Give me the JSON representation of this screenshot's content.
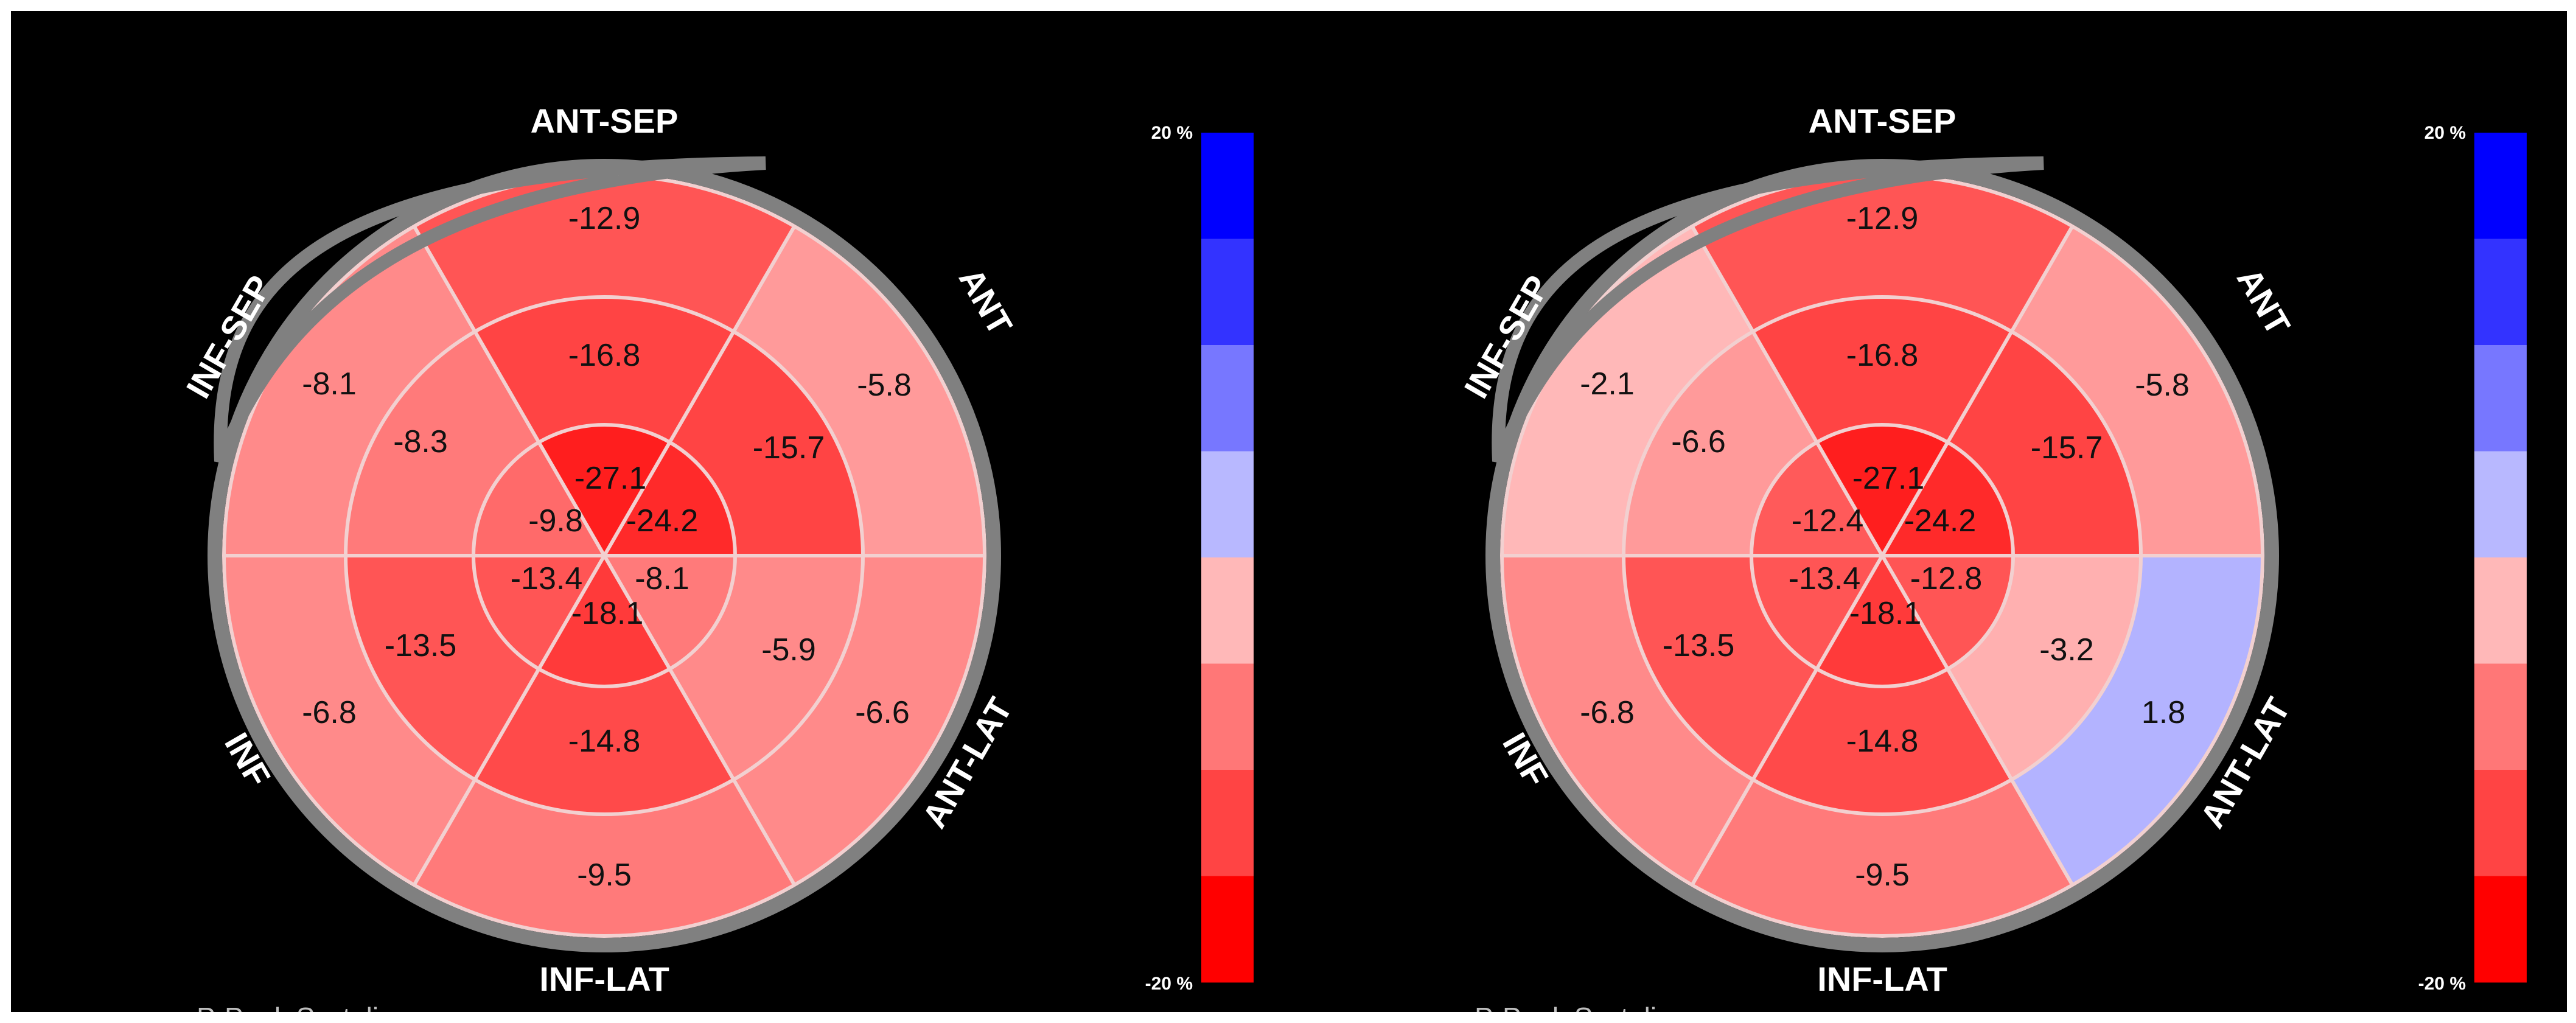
{
  "scale": {
    "max_label": "20 %",
    "min_label": "-20 %",
    "bands": [
      "#0000ff",
      "#3333ff",
      "#7777ff",
      "#b8b8ff",
      "#ffb8b8",
      "#ff7777",
      "#ff4444",
      "#ff0000"
    ]
  },
  "caption": "P-Peak Systolic",
  "maps": [
    {
      "regions": {
        "top": "ANT-SEP",
        "upper_right": "ANT",
        "lower_right": "ANT-LAT",
        "bottom": "INF-LAT",
        "lower_left": "INF",
        "upper_left": "INF-SEP"
      },
      "basal": [
        "-12.9",
        "-5.8",
        "-6.6",
        "-9.5",
        "-6.8",
        "-8.1"
      ],
      "mid": [
        "-16.8",
        "-15.7",
        "-5.9",
        "-14.8",
        "-13.5",
        "-8.3"
      ],
      "apical": [
        "-27.1",
        "-24.2",
        "-8.1",
        "-18.1",
        "-13.4",
        "-9.8"
      ],
      "basal_colors": [
        "#ff5555",
        "#ff9a9a",
        "#ff8a8a",
        "#ff7a7a",
        "#ff8a8a",
        "#ff8a8a"
      ],
      "mid_colors": [
        "#ff4444",
        "#ff4444",
        "#ff8a8a",
        "#ff4a4a",
        "#ff5555",
        "#ff7a7a"
      ],
      "apical_colors": [
        "#ff1e1e",
        "#ff2a2a",
        "#ff7a7a",
        "#ff3a3a",
        "#ff5555",
        "#ff6a6a"
      ]
    },
    {
      "regions": {
        "top": "ANT-SEP",
        "upper_right": "ANT",
        "lower_right": "ANT-LAT",
        "bottom": "INF-LAT",
        "lower_left": "INF",
        "upper_left": "INF-SEP"
      },
      "basal": [
        "-12.9",
        "-5.8",
        "1.8",
        "-9.5",
        "-6.8",
        "-2.1"
      ],
      "mid": [
        "-16.8",
        "-15.7",
        "-3.2",
        "-14.8",
        "-13.5",
        "-6.6"
      ],
      "apical": [
        "-27.1",
        "-24.2",
        "-12.8",
        "-18.1",
        "-13.4",
        "-12.4"
      ],
      "basal_colors": [
        "#ff5555",
        "#ff9a9a",
        "#b3b3ff",
        "#ff7a7a",
        "#ff8a8a",
        "#ffb8b8"
      ],
      "mid_colors": [
        "#ff4444",
        "#ff4444",
        "#ffb0b0",
        "#ff4a4a",
        "#ff5555",
        "#ff9a9a"
      ],
      "apical_colors": [
        "#ff1e1e",
        "#ff2a2a",
        "#ff5555",
        "#ff3a3a",
        "#ff5555",
        "#ff5a5a"
      ]
    }
  ]
}
